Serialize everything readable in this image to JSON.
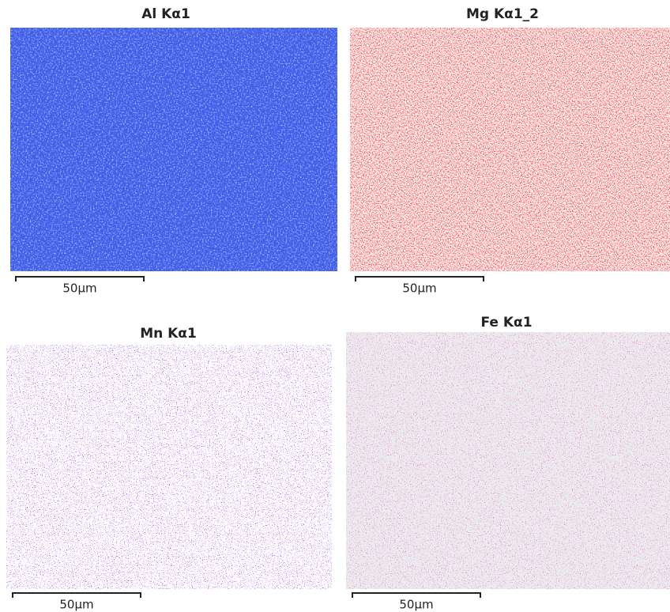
{
  "panels": [
    {
      "title": "Al Kα1",
      "scale_label": "50µm",
      "color": "#ffffff",
      "background": "#3d5ce8"
    },
    {
      "title": "Mg Kα1_2",
      "scale_label": "50µm",
      "color": "#e8262a",
      "background": "#ffffff"
    },
    {
      "title": "Mn Kα1",
      "scale_label": "50µm",
      "color": "#8b2fd6",
      "background": "#ffffff"
    },
    {
      "title": "Fe Kα1",
      "scale_label": "50µm",
      "color": "#e83ad0",
      "background": "#ececec"
    }
  ]
}
